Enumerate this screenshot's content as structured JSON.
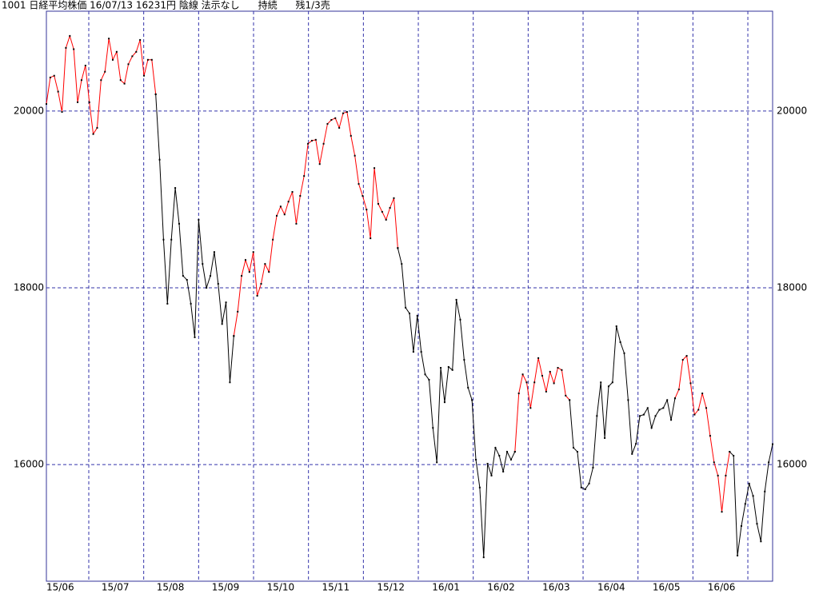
{
  "chart_data": {
    "type": "line",
    "title": "1001 日経平均株価 16/07/13 16231円 陰線 法示なし      持続      残1/3売",
    "xtick_labels": [
      "15/06",
      "15/07",
      "15/08",
      "15/09",
      "15/10",
      "15/11",
      "15/12",
      "16/01",
      "16/02",
      "16/03",
      "16/04",
      "16/05",
      "16/06"
    ],
    "ylim": [
      14680,
      21130
    ],
    "yticks": [
      16000,
      18000,
      20000
    ],
    "grid": true,
    "series": [
      {
        "color": "#ff0000",
        "values": [
          20080,
          20380,
          20400,
          20220,
          19990,
          20715,
          20850,
          20700,
          20100,
          20350,
          20515,
          20100,
          19740,
          19810,
          20350,
          20445,
          20820,
          20580,
          20670,
          20350,
          20310,
          20530,
          20620,
          20670,
          20805,
          20400,
          20580,
          20580,
          20190,
          null,
          null,
          null,
          null,
          null,
          null,
          null,
          null,
          null,
          null,
          null,
          null,
          null,
          null,
          null,
          null,
          null,
          null,
          null,
          17455,
          17730,
          18135,
          18315,
          18180,
          18405,
          17910,
          18045,
          18270,
          18180,
          18545,
          18815,
          18920,
          18830,
          18975,
          19085,
          18725,
          19040,
          19265,
          19630,
          19665,
          19675,
          19400,
          19630,
          19855,
          19900,
          19920,
          19810,
          19975,
          19990,
          19720,
          19495,
          19175,
          19040,
          18885,
          18560,
          19355,
          18950,
          18860,
          18770,
          18905,
          19015,
          18450,
          null,
          null,
          null,
          null,
          null,
          null,
          null,
          null,
          null,
          null,
          null,
          null,
          null,
          null,
          null,
          null,
          null,
          null,
          null,
          null,
          null,
          null,
          null,
          null,
          null,
          null,
          null,
          null,
          null,
          16145,
          16805,
          17020,
          16930,
          16640,
          16930,
          17205,
          17005,
          16825,
          17050,
          16920,
          17095,
          17070,
          16780,
          16730,
          null,
          null,
          null,
          null,
          null,
          null,
          null,
          null,
          null,
          null,
          null,
          null,
          null,
          null,
          null,
          null,
          null,
          null,
          null,
          null,
          null,
          null,
          null,
          null,
          null,
          null,
          16750,
          16850,
          17185,
          17230,
          16920,
          16565,
          16620,
          16805,
          16640,
          16325,
          16025,
          15875,
          15465,
          15875,
          16145,
          null,
          null,
          null,
          null,
          null,
          null,
          null,
          null,
          null,
          null,
          null
        ]
      },
      {
        "color": "#000000",
        "values": [
          null,
          null,
          null,
          null,
          null,
          null,
          null,
          null,
          null,
          null,
          null,
          null,
          null,
          null,
          null,
          null,
          null,
          null,
          null,
          null,
          null,
          null,
          null,
          null,
          null,
          null,
          null,
          null,
          20190,
          19450,
          18545,
          17820,
          18545,
          19130,
          18725,
          18135,
          18090,
          17820,
          17440,
          18770,
          18270,
          18000,
          18135,
          18405,
          18045,
          17590,
          17835,
          16930,
          17455,
          null,
          null,
          null,
          null,
          null,
          null,
          null,
          null,
          null,
          null,
          null,
          null,
          null,
          null,
          null,
          null,
          null,
          null,
          null,
          null,
          null,
          null,
          null,
          null,
          null,
          null,
          null,
          null,
          null,
          null,
          null,
          null,
          null,
          null,
          null,
          null,
          null,
          null,
          null,
          null,
          null,
          18450,
          18270,
          17775,
          17710,
          17275,
          17685,
          17275,
          17020,
          16960,
          16415,
          16025,
          17095,
          16705,
          17105,
          17070,
          17865,
          17640,
          17185,
          16870,
          16730,
          16055,
          15740,
          14950,
          16010,
          15875,
          16190,
          16100,
          15920,
          16145,
          16055,
          16145,
          null,
          null,
          null,
          null,
          null,
          null,
          null,
          null,
          null,
          null,
          null,
          null,
          null,
          16730,
          16190,
          16145,
          15740,
          15720,
          15785,
          15965,
          16550,
          16930,
          16300,
          16885,
          16930,
          17565,
          17385,
          17260,
          16730,
          16120,
          16235,
          16550,
          16565,
          16640,
          16415,
          16550,
          16620,
          16640,
          16730,
          16505,
          16750,
          null,
          null,
          null,
          null,
          null,
          null,
          null,
          null,
          null,
          null,
          null,
          null,
          null,
          16145,
          16100,
          14970,
          15305,
          15555,
          15785,
          15645,
          15330,
          15130,
          15695,
          16025,
          16231
        ]
      }
    ]
  }
}
